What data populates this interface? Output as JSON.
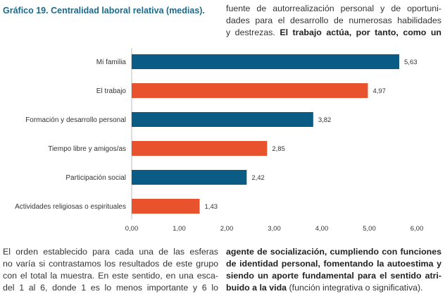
{
  "header": {
    "title": "Gráfico 19. Centralidad laboral relativa (medias)."
  },
  "text": {
    "right_top": [
      "fuente de autorrealización personal y de oportuni-",
      "dades para el desarrollo de numerosas habilidades"
    ],
    "right_top_line3_plain": "y destrezas.",
    "right_top_line3_bold": "El trabajo actúa, por tanto, como un",
    "left_bottom": [
      "El orden establecido para cada una de las esferas",
      "no varía si contrastamos los resultados de este grupo",
      "con el total la muestra. En este sentido, en una esca-",
      "del 1 al 6, donde 1 es lo menos importante y 6 lo"
    ],
    "right_bottom_bold": [
      "agente de socialización, cumpliendo con funciones",
      "de identidad personal, fomentando la autoestima y",
      "siendo un aporte fundamental para el sentido atri-"
    ],
    "right_bottom_line4_bold": "buido a la vida",
    "right_bottom_line4_plain": "(función integrativa o significativa)."
  },
  "chart_data": {
    "type": "bar",
    "orientation": "horizontal",
    "title": "Gráfico 19. Centralidad laboral relativa (medias).",
    "categories": [
      "Mi familia",
      "El trabajo",
      "Formación y desarrollo personal",
      "Tiempo libre y amigos/as",
      "Participación social",
      "Actividades religiosas o espirituales"
    ],
    "values": [
      5.63,
      4.97,
      3.82,
      2.85,
      2.42,
      1.43
    ],
    "value_labels": [
      "5,63",
      "4,97",
      "3,82",
      "2,85",
      "2,42",
      "1,43"
    ],
    "bar_colors": [
      "#0b5c85",
      "#e8532d",
      "#0b5c85",
      "#e8532d",
      "#0b5c85",
      "#e8532d"
    ],
    "xlim": [
      0,
      6
    ],
    "xticks": [
      0,
      1,
      2,
      3,
      4,
      5,
      6
    ],
    "xtick_labels": [
      "0,00",
      "1,00",
      "2,00",
      "3,00",
      "4,00",
      "5,00",
      "6,00"
    ],
    "xlabel": "",
    "ylabel": "",
    "grid": false,
    "legend": "none"
  }
}
